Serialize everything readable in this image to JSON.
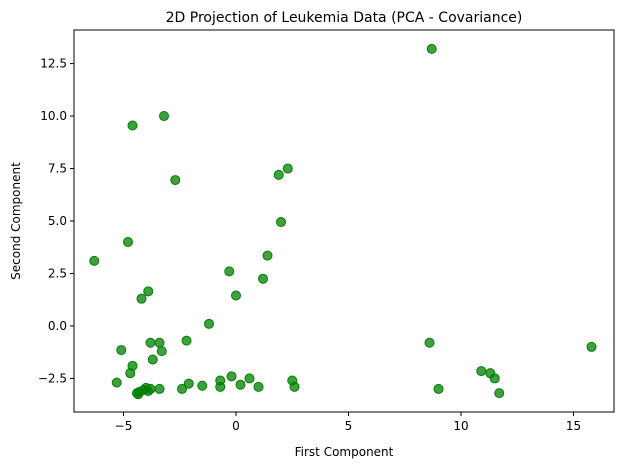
{
  "chart_data": {
    "type": "scatter",
    "title": "2D Projection of Leukemia Data (PCA - Covariance)",
    "xlabel": "First Component",
    "ylabel": "Second Component",
    "xlim": [
      -7.2,
      16.8
    ],
    "ylim": [
      -4.1,
      14.1
    ],
    "xticks": [
      -5,
      0,
      5,
      10,
      15
    ],
    "xtick_labels": [
      "−5",
      "0",
      "5",
      "10",
      "15"
    ],
    "yticks": [
      -2.5,
      0.0,
      2.5,
      5.0,
      7.5,
      10.0,
      12.5
    ],
    "ytick_labels": [
      "−2.5",
      "0.0",
      "2.5",
      "5.0",
      "7.5",
      "10.0",
      "12.5"
    ],
    "grid": false,
    "marker_color": "#008000",
    "marker_alpha": 0.75,
    "points": [
      {
        "x": 8.7,
        "y": 13.2
      },
      {
        "x": -3.2,
        "y": 10.0
      },
      {
        "x": -4.6,
        "y": 9.55
      },
      {
        "x": 2.3,
        "y": 7.5
      },
      {
        "x": 1.9,
        "y": 7.2
      },
      {
        "x": -2.7,
        "y": 6.95
      },
      {
        "x": 2.0,
        "y": 4.95
      },
      {
        "x": -4.8,
        "y": 4.0
      },
      {
        "x": 1.4,
        "y": 3.35
      },
      {
        "x": -6.3,
        "y": 3.1
      },
      {
        "x": -0.3,
        "y": 2.6
      },
      {
        "x": 1.2,
        "y": 2.25
      },
      {
        "x": -3.9,
        "y": 1.65
      },
      {
        "x": 0.0,
        "y": 1.45
      },
      {
        "x": -4.2,
        "y": 1.3
      },
      {
        "x": -1.2,
        "y": 0.1
      },
      {
        "x": -3.8,
        "y": -0.8
      },
      {
        "x": -3.4,
        "y": -0.8
      },
      {
        "x": -2.2,
        "y": -0.7
      },
      {
        "x": 8.6,
        "y": -0.8
      },
      {
        "x": 15.8,
        "y": -1.0
      },
      {
        "x": -5.1,
        "y": -1.15
      },
      {
        "x": -3.3,
        "y": -1.2
      },
      {
        "x": -3.7,
        "y": -1.6
      },
      {
        "x": -4.6,
        "y": -1.9
      },
      {
        "x": -4.7,
        "y": -2.25
      },
      {
        "x": 10.9,
        "y": -2.15
      },
      {
        "x": 11.3,
        "y": -2.25
      },
      {
        "x": 11.5,
        "y": -2.5
      },
      {
        "x": -0.2,
        "y": -2.4
      },
      {
        "x": 0.6,
        "y": -2.5
      },
      {
        "x": -0.7,
        "y": -2.6
      },
      {
        "x": 2.5,
        "y": -2.6
      },
      {
        "x": -5.3,
        "y": -2.7
      },
      {
        "x": -2.1,
        "y": -2.75
      },
      {
        "x": 0.2,
        "y": -2.8
      },
      {
        "x": 2.6,
        "y": -2.9
      },
      {
        "x": -1.5,
        "y": -2.85
      },
      {
        "x": -0.7,
        "y": -2.9
      },
      {
        "x": 1.0,
        "y": -2.9
      },
      {
        "x": -4.0,
        "y": -2.95
      },
      {
        "x": -3.8,
        "y": -3.0
      },
      {
        "x": -3.4,
        "y": -3.0
      },
      {
        "x": -2.4,
        "y": -3.0
      },
      {
        "x": 9.0,
        "y": -3.0
      },
      {
        "x": -4.1,
        "y": -3.05
      },
      {
        "x": -3.9,
        "y": -3.1
      },
      {
        "x": -4.3,
        "y": -3.15
      },
      {
        "x": -4.4,
        "y": -3.2
      },
      {
        "x": -4.35,
        "y": -3.25
      },
      {
        "x": 11.7,
        "y": -3.2
      }
    ]
  }
}
